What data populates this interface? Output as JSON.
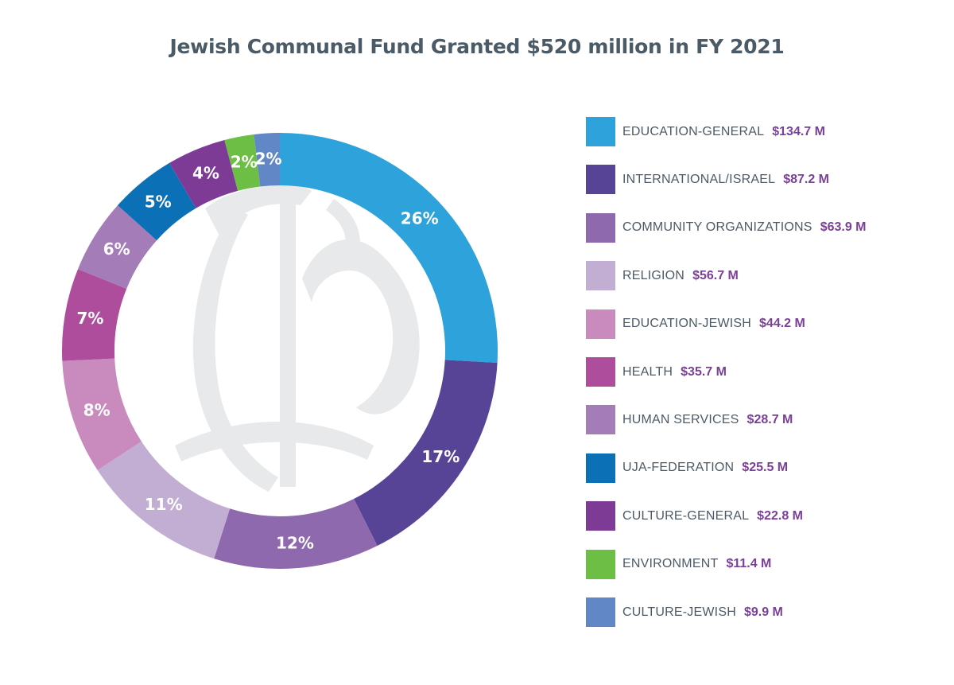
{
  "chart_data": {
    "type": "pie",
    "title": "Jewish Communal Fund Granted $520 million in FY 2021",
    "categories": [
      "EDUCATION-GENERAL",
      "INTERNATIONAL/ISRAEL",
      "COMMUNITY ORGANIZATIONS",
      "RELIGION",
      "EDUCATION-JEWISH",
      "HEALTH",
      "HUMAN SERVICES",
      "UJA-FEDERATION",
      "CULTURE-GENERAL",
      "ENVIRONMENT",
      "CULTURE-JEWISH"
    ],
    "values": [
      134.7,
      87.2,
      63.9,
      56.7,
      44.2,
      35.7,
      28.7,
      25.5,
      22.8,
      11.4,
      9.9
    ],
    "value_labels": [
      "$134.7 M",
      "$87.2 M",
      "$63.9 M",
      "$56.7 M",
      "$44.2 M",
      "$35.7 M",
      "$28.7 M",
      "$25.5 M",
      "$22.8 M",
      "$11.4 M",
      "$9.9 M"
    ],
    "percent_labels": [
      "26%",
      "17%",
      "12%",
      "11%",
      "8%",
      "7%",
      "6%",
      "5%",
      "4%",
      "2%",
      "2%"
    ],
    "colors": [
      "#2ea3db",
      "#574497",
      "#8e69ae",
      "#c3aed3",
      "#c98abd",
      "#ad4d9c",
      "#a47cb8",
      "#0c70b7",
      "#7e3b96",
      "#6dbe44",
      "#6287c7"
    ],
    "legend_position": "right",
    "donut": true,
    "watermark": "JCF monogram"
  }
}
